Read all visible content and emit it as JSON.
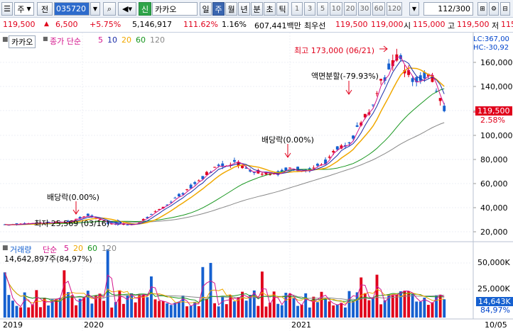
{
  "toolbar": {
    "sort_label": "주",
    "prev_label": "전",
    "code": "035720",
    "credit_badge": "신",
    "stock_name": "카카오",
    "periods": [
      "일",
      "주",
      "월",
      "년",
      "분",
      "초",
      "틱"
    ],
    "selected_period": "주",
    "numbers": [
      "1",
      "3",
      "5",
      "10",
      "20",
      "30",
      "60",
      "120"
    ],
    "count_value": "112",
    "count_total": "/300"
  },
  "quote": {
    "price": "119,500",
    "change": "6,500",
    "change_pct": "+5.75%",
    "volume": "5,146,917",
    "volume_ratio": "111.62%",
    "turnover": "1.16%",
    "amount": "607,441백만",
    "best_label": "최우선",
    "ask": "119,500",
    "bid": "119,000",
    "open_label": "시",
    "open": "115,000",
    "high_label": "고",
    "high": "119,500",
    "low_label": "저",
    "low": "115"
  },
  "price_chart": {
    "name": "카카오",
    "indicator_label": "종가 단순",
    "ma": [
      {
        "period": "5",
        "color": "#d4148c"
      },
      {
        "period": "10",
        "color": "#1a2ca8"
      },
      {
        "period": "20",
        "color": "#f0a800"
      },
      {
        "period": "60",
        "color": "#17961e"
      },
      {
        "period": "120",
        "color": "#888888"
      }
    ],
    "lc": "LC:367,00",
    "hc": "HC:-30,92",
    "y_ticks": [
      "160,000",
      "140,000",
      "120,000",
      "100,000",
      "80,000",
      "60,000",
      "40,000",
      "20,000"
    ],
    "current_price": "119,500",
    "current_pct": "2.58%",
    "annotations": {
      "high": "최고 173,000 (06/21)",
      "split": "액면분할(-79.93%)",
      "dividend1": "배당락(0.00%)",
      "dividend2": "배당락(0.00%)",
      "low": "최저 25,569 (03/16)"
    },
    "ma_levels": {
      "ma120": 71000,
      "ma60": 106000,
      "ma20": 140000
    }
  },
  "volume_chart": {
    "title": "거래량",
    "indicator_label": "단순",
    "ma": [
      {
        "period": "5",
        "color": "#d4148c"
      },
      {
        "period": "20",
        "color": "#f0a800"
      },
      {
        "period": "60",
        "color": "#17961e"
      },
      {
        "period": "120",
        "color": "#888888"
      }
    ],
    "total": "14,642,897주(84,97%)",
    "y_ticks": [
      "50,000K",
      "25,000K"
    ],
    "current": "14,643K",
    "current_pct": "84,97%"
  },
  "x_axis": [
    "2019",
    "2020",
    "2021",
    "10/05"
  ],
  "colors": {
    "up": "#e0001b",
    "down": "#1560d0"
  },
  "chart_data": {
    "type": "candlestick",
    "ylim": [
      15000,
      175000
    ],
    "annotated_high": 173000,
    "annotated_low": 25569,
    "last_close": 119500
  }
}
